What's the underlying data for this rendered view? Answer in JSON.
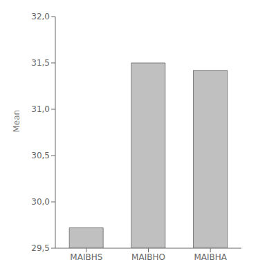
{
  "chart_data": {
    "type": "bar",
    "ylabel": "Mean",
    "categories": [
      "MAIBHS",
      "MAIBHO",
      "MAIBHA"
    ],
    "values": [
      29.72,
      31.5,
      31.42
    ],
    "color": "#c0c0c0",
    "ylim": [
      29.5,
      32.0
    ],
    "yticks": [
      {
        "value": 29.5,
        "label": "29,5"
      },
      {
        "value": 30.0,
        "label": "30,0"
      },
      {
        "value": 30.5,
        "label": "30,5"
      },
      {
        "value": 31.0,
        "label": "31,0"
      },
      {
        "value": 31.5,
        "label": "31,5"
      },
      {
        "value": 32.0,
        "label": "32,0"
      }
    ],
    "grid": false
  }
}
